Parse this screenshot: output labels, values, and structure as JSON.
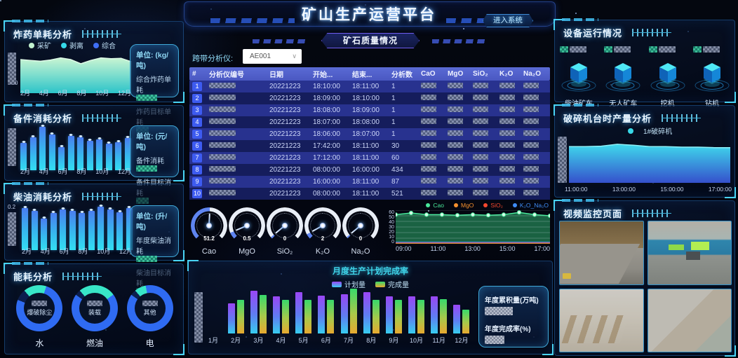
{
  "app": {
    "title": "矿山生产运营平台",
    "enter_button": "进入系统"
  },
  "left": {
    "explosive": {
      "title": "炸药单耗分析",
      "legend": [
        {
          "label": "采矿",
          "color": "#c2f2cf"
        },
        {
          "label": "剥离",
          "color": "#35d8e8"
        },
        {
          "label": "综合",
          "color": "#3f6ff5"
        }
      ],
      "unit": "单位: (kg/吨)",
      "metric1": "综合炸药单耗",
      "metric2": "炸药目标单耗",
      "y_zero": "0",
      "months": [
        "2月",
        "4月",
        "6月",
        "8月",
        "10月",
        "12月"
      ],
      "chart_data": {
        "type": "area",
        "values": [
          80,
          78,
          76,
          79,
          84,
          80,
          70,
          78,
          84,
          82,
          83,
          75
        ]
      }
    },
    "spare": {
      "title": "备件消耗分析",
      "unit": "单位: (元/吨)",
      "metric1": "备件消耗",
      "metric2": "备件目标消耗",
      "months": [
        "2月",
        "4月",
        "6月",
        "8月",
        "10月",
        "12月"
      ],
      "chart_data": {
        "type": "bar",
        "values": [
          60,
          72,
          95,
          78,
          50,
          75,
          72,
          65,
          68,
          58,
          62,
          70
        ]
      }
    },
    "diesel": {
      "title": "柴油消耗分析",
      "unit": "单位: (升/吨)",
      "metric1": "年度柴油消耗",
      "metric2": "柴油目标消耗",
      "y_top": "0.2",
      "y_zero": "0",
      "months": [
        "2月",
        "4月",
        "6月",
        "8月",
        "10月",
        "12月"
      ],
      "chart_data": {
        "type": "bar",
        "ylim": [
          0,
          0.2
        ],
        "values": [
          0.16,
          0.15,
          0.12,
          0.14,
          0.155,
          0.15,
          0.14,
          0.15,
          0.165,
          0.155,
          0.145,
          0.16
        ]
      }
    },
    "energy": {
      "title": "能耗分析",
      "chart_data": {
        "type": "pie",
        "donuts": [
          {
            "label": "水",
            "inner": "爆破除尘",
            "segments": [
              [
                "#38e6c8",
                16
              ],
              [
                "#2f6bf2",
                76
              ],
              [
                "#0c1f4e",
                8
              ]
            ]
          },
          {
            "label": "燃油",
            "inner": "装载",
            "segments": [
              [
                "#38e6c8",
                26
              ],
              [
                "#2f6bf2",
                70
              ],
              [
                "#0c1f4e",
                4
              ]
            ]
          },
          {
            "label": "电",
            "inner": "其他",
            "segments": [
              [
                "#38e6c8",
                8
              ],
              [
                "#2f6bf2",
                88
              ],
              [
                "#0c1f4e",
                4
              ]
            ]
          }
        ]
      }
    }
  },
  "center": {
    "ore": {
      "badge": "矿石质量情况",
      "analyzer_label": "跨带分析仪:",
      "analyzer_value": "AE001",
      "table": {
        "columns": [
          "#",
          "分析仪编号",
          "日期",
          "开始...",
          "结束...",
          "分析数",
          "CaO",
          "MgO",
          "SiO₂",
          "K₂O",
          "Na₂O"
        ],
        "rows": [
          {
            "num": "1",
            "date": "20221223",
            "start": "18:10:00",
            "end": "18:11:00",
            "count": "1"
          },
          {
            "num": "2",
            "date": "20221223",
            "start": "18:09:00",
            "end": "18:10:00",
            "count": "1"
          },
          {
            "num": "3",
            "date": "20221223",
            "start": "18:08:00",
            "end": "18:09:00",
            "count": "1"
          },
          {
            "num": "4",
            "date": "20221223",
            "start": "18:07:00",
            "end": "18:08:00",
            "count": "1"
          },
          {
            "num": "5",
            "date": "20221223",
            "start": "18:06:00",
            "end": "18:07:00",
            "count": "1"
          },
          {
            "num": "6",
            "date": "20221223",
            "start": "17:42:00",
            "end": "18:11:00",
            "count": "30"
          },
          {
            "num": "7",
            "date": "20221223",
            "start": "17:12:00",
            "end": "18:11:00",
            "count": "60"
          },
          {
            "num": "8",
            "date": "20221223",
            "start": "08:00:00",
            "end": "16:00:00",
            "count": "434"
          },
          {
            "num": "9",
            "date": "20221223",
            "start": "16:00:00",
            "end": "18:11:00",
            "count": "87"
          },
          {
            "num": "10",
            "date": "20221223",
            "start": "08:00:00",
            "end": "18:11:00",
            "count": "521"
          }
        ]
      },
      "gauges": [
        {
          "label": "Cao",
          "value": "51.2",
          "fill": 0.51
        },
        {
          "label": "MgO",
          "value": "0.5",
          "fill": 0.08
        },
        {
          "label": "SiO₂",
          "value": "0",
          "fill": 0.02
        },
        {
          "label": "K₂O",
          "value": "2",
          "fill": 0.06
        },
        {
          "label": "Na₂O",
          "value": "0",
          "fill": 0.02
        }
      ],
      "trend": {
        "chart_data": {
          "type": "line",
          "x": [
            "09:00",
            "11:00",
            "13:00",
            "15:00",
            "17:00"
          ],
          "yticks": [
            "60",
            "50",
            "40",
            "30",
            "20",
            "10",
            "0"
          ],
          "ylim": [
            0,
            60
          ],
          "legend": [
            {
              "name": "Cao",
              "color": "#49e89b"
            },
            {
              "name": "MgO",
              "color": "#f5902e"
            },
            {
              "name": "SiO₂",
              "color": "#f5482e"
            },
            {
              "name": "K₂O_Na₂O",
              "color": "#3f8cf5"
            }
          ],
          "series": [
            {
              "name": "Cao",
              "values": [
                52,
                55,
                52,
                52,
                51,
                52,
                51,
                52,
                56,
                52,
                50
              ]
            },
            {
              "name": "MgO",
              "values": [
                1,
                1,
                1,
                1,
                1,
                1,
                1,
                1,
                1,
                1,
                1
              ]
            },
            {
              "name": "SiO₂",
              "values": [
                2,
                2,
                2,
                2,
                2,
                2,
                2,
                2,
                2,
                2,
                2
              ]
            },
            {
              "name": "K₂O_Na₂O",
              "values": [
                3,
                3,
                3,
                3,
                3,
                3,
                3,
                3,
                3,
                3,
                3
              ]
            }
          ]
        }
      }
    },
    "monthly": {
      "title": "月度生产计划完成率",
      "summary1": "年度累积量(万吨)",
      "summary2": "年度完成率(%)",
      "chart_data": {
        "type": "bar",
        "categories": [
          "1月",
          "2月",
          "3月",
          "4月",
          "5月",
          "6月",
          "7月",
          "8月",
          "9月",
          "10月",
          "11月",
          "12月"
        ],
        "legend": [
          {
            "name": "计划量",
            "colors": [
              "#9a46f5",
              "#38cdf0"
            ]
          },
          {
            "name": "完成量",
            "colors": [
              "#38d96b",
              "#e8a930"
            ]
          }
        ],
        "series": [
          {
            "name": "计划量",
            "values": [
              0,
              55,
              78,
              68,
              76,
              69,
              72,
              76,
              68,
              68,
              68,
              52
            ]
          },
          {
            "name": "完成量",
            "values": [
              0,
              62,
              70,
              61,
              62,
              61,
              82,
              61,
              61,
              61,
              63,
              44
            ]
          }
        ]
      }
    }
  },
  "right": {
    "equipment": {
      "title": "设备运行情况",
      "items": [
        {
          "label": "柴油矿车"
        },
        {
          "label": "无人矿车"
        },
        {
          "label": "挖机"
        },
        {
          "label": "钻机"
        }
      ]
    },
    "crusher": {
      "title": "破碎机台时产量分析",
      "legend": "1#破碎机",
      "legend_color": "#38d8e8",
      "x": [
        "11:00:00",
        "13:00:00",
        "15:00:00",
        "17:00:00"
      ],
      "chart_data": {
        "type": "area",
        "values": [
          76,
          76,
          77,
          81,
          79,
          76,
          76,
          75,
          75,
          74,
          74
        ]
      }
    },
    "video": {
      "title": "视频监控页面"
    }
  }
}
